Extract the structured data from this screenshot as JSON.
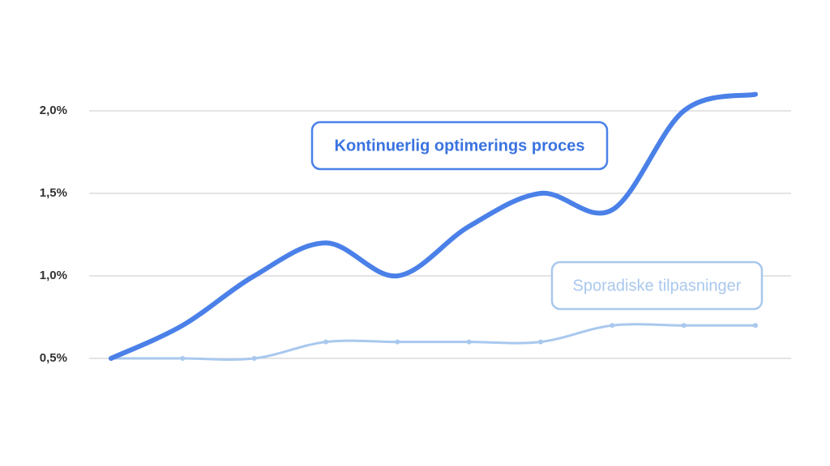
{
  "chart_data": {
    "type": "line",
    "categories": [
      null,
      null,
      null,
      null,
      null,
      null,
      null,
      null,
      null,
      null
    ],
    "series": [
      {
        "name": "Kontinuerlig optimerings proces",
        "color": "#4a80e8",
        "values": [
          0.5,
          0.7,
          1.0,
          1.2,
          1.0,
          1.3,
          1.5,
          1.4,
          2.0,
          2.1
        ]
      },
      {
        "name": "Sporadiske tilpasninger",
        "color": "#a9c8ee",
        "values": [
          0.5,
          0.5,
          0.5,
          0.6,
          0.6,
          0.6,
          0.6,
          0.7,
          0.7,
          0.7
        ]
      }
    ],
    "ylim": [
      0.5,
      2.0
    ],
    "yticks": [
      {
        "value": 0.5,
        "label": "0,5%"
      },
      {
        "value": 1.0,
        "label": "1,0%"
      },
      {
        "value": 1.5,
        "label": "1,5%"
      },
      {
        "value": 2.0,
        "label": "2,0%"
      }
    ],
    "grid": true
  }
}
